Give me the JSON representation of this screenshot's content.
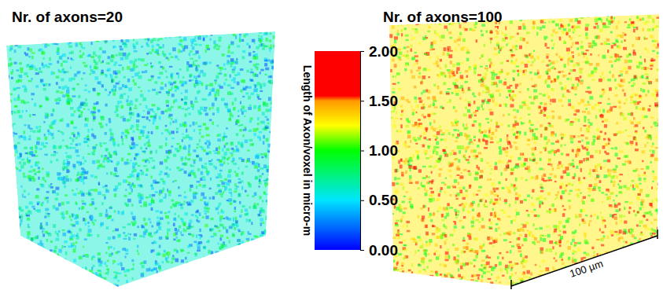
{
  "chart_data": {
    "type": "volume",
    "panels": [
      {
        "title": "Nr. of axons=20",
        "mean_value": 0.6
      },
      {
        "title": "Nr. of axons=100",
        "mean_value": 1.3
      }
    ],
    "colorbar": {
      "label": "Length of Axon/voxel in micro-m",
      "range": [
        0,
        2
      ],
      "ticks": [
        {
          "value": 0,
          "label": "0.00"
        },
        {
          "value": 0.5,
          "label": "0.50"
        },
        {
          "value": 1,
          "label": "1.00"
        },
        {
          "value": 1.5,
          "label": "1.50"
        },
        {
          "value": 2,
          "label": "2.00"
        }
      ]
    },
    "scale_bar": {
      "label": "100 µm",
      "length": 100
    }
  }
}
